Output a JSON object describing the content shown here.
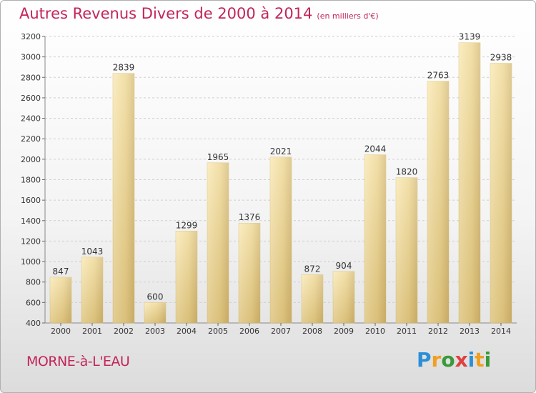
{
  "title": "Autres Revenus Divers de 2000 à 2014",
  "title_unit": "(en milliers d'€)",
  "commune": "MORNE-à-L'EAU",
  "brand": [
    "P",
    "r",
    "o",
    "x",
    "i",
    "t",
    "i"
  ],
  "colors": {
    "title": "#c3245b",
    "bar_light": "#f7e3a6",
    "bar_dark": "#c8ac66",
    "grid": "#cfcfcf",
    "axis_text": "#333333"
  },
  "chart_data": {
    "type": "bar",
    "title": "Autres Revenus Divers de 2000 à 2014",
    "categories": [
      "2000",
      "2001",
      "2002",
      "2003",
      "2004",
      "2005",
      "2006",
      "2007",
      "2008",
      "2009",
      "2010",
      "2011",
      "2012",
      "2013",
      "2014"
    ],
    "values": [
      847,
      1043,
      2839,
      600,
      1299,
      1965,
      1376,
      2021,
      872,
      904,
      2044,
      1820,
      2763,
      3139,
      2938
    ],
    "ylim": [
      400,
      3200
    ],
    "yticks": [
      400,
      600,
      800,
      1000,
      1200,
      1400,
      1600,
      1800,
      2000,
      2200,
      2400,
      2600,
      2800,
      3000,
      3200
    ],
    "grid": true,
    "xlabel": "",
    "ylabel": ""
  }
}
